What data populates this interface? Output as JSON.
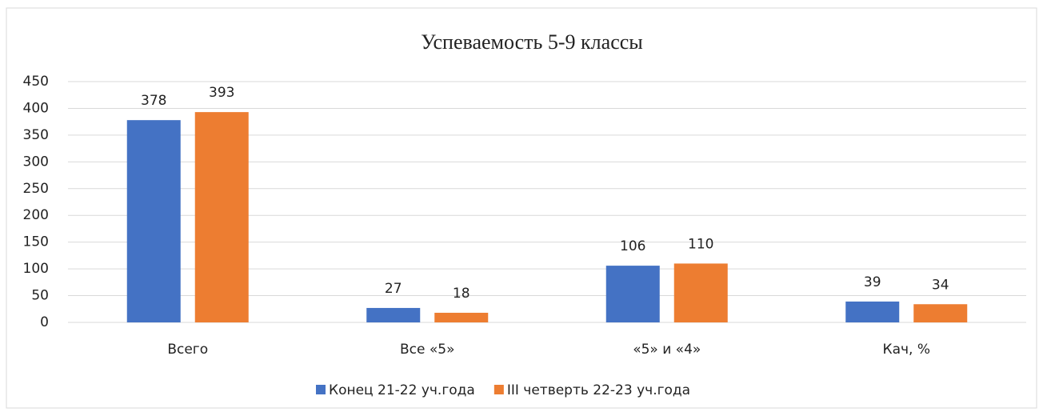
{
  "chart_data": {
    "type": "bar",
    "title": "Успеваемость 5-9 классы",
    "categories": [
      "Всего",
      "Все «5»",
      "«5» и «4»",
      "Кач, %"
    ],
    "series": [
      {
        "name": "Конец 21-22 уч.года",
        "color": "#4472c4",
        "values": [
          378,
          27,
          106,
          39
        ]
      },
      {
        "name": "III четверть 22-23 уч.года",
        "color": "#ed7d31",
        "values": [
          393,
          18,
          110,
          34
        ]
      }
    ],
    "ylim": [
      0,
      450
    ],
    "yticks": [
      0,
      50,
      100,
      150,
      200,
      250,
      300,
      350,
      400,
      450
    ],
    "grid": true,
    "legend": "bottom",
    "data_labels": true
  }
}
